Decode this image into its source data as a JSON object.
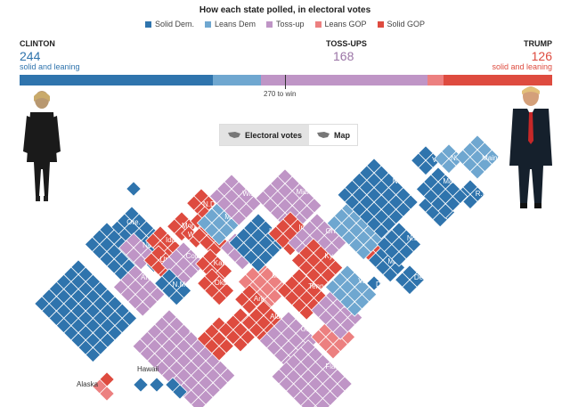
{
  "header": {
    "title": "How each state polled, in electoral votes"
  },
  "legend": [
    {
      "label": "Solid Dem.",
      "color": "#2f74ad"
    },
    {
      "label": "Leans Dem",
      "color": "#6fa7d0"
    },
    {
      "label": "Toss-up",
      "color": "#bf95c6"
    },
    {
      "label": "Leans GOP",
      "color": "#ec8080"
    },
    {
      "label": "Solid GOP",
      "color": "#de4b3f"
    }
  ],
  "summary": {
    "clinton": {
      "name": "CLINTON",
      "votes": "244",
      "sub": "solid and leaning"
    },
    "tossups": {
      "name": "TOSS-UPS",
      "votes": "168"
    },
    "trump": {
      "name": "TRUMP",
      "votes": "126",
      "sub": "solid and leaning"
    },
    "win_label": "270 to win",
    "bar": [
      {
        "key": "solid_dem",
        "votes": 195,
        "color": "#2f74ad"
      },
      {
        "key": "leans_dem",
        "votes": 49,
        "color": "#6fa7d0"
      },
      {
        "key": "tossup",
        "votes": 168,
        "color": "#bf95c6"
      },
      {
        "key": "leans_gop",
        "votes": 16,
        "color": "#ec8080"
      },
      {
        "key": "solid_gop",
        "votes": 110,
        "color": "#de4b3f"
      }
    ]
  },
  "toggle": {
    "electoral": "Electoral votes",
    "map": "Map"
  },
  "colors": {
    "solid_dem": "#2f74ad",
    "leans_dem": "#6fa7d0",
    "tossup": "#bf95c6",
    "leans_gop": "#ec8080",
    "solid_gop": "#de4b3f"
  },
  "states": [
    {
      "abbr": "Wash.",
      "status": "solid_dem"
    },
    {
      "abbr": "Ore.",
      "status": "solid_dem"
    },
    {
      "abbr": "Calif.",
      "status": "solid_dem"
    },
    {
      "abbr": "Nev.",
      "status": "tossup"
    },
    {
      "abbr": "Idaho",
      "status": "solid_gop"
    },
    {
      "abbr": "Mont.",
      "status": "solid_gop"
    },
    {
      "abbr": "Wyo.",
      "status": "solid_gop"
    },
    {
      "abbr": "Utah",
      "status": "solid_gop"
    },
    {
      "abbr": "Colo.",
      "status": "tossup"
    },
    {
      "abbr": "Ariz.",
      "status": "tossup"
    },
    {
      "abbr": "N.M.",
      "status": "solid_dem"
    },
    {
      "abbr": "N.D.",
      "status": "solid_gop"
    },
    {
      "abbr": "S.D.",
      "status": "solid_gop"
    },
    {
      "abbr": "Neb.",
      "status": "solid_gop"
    },
    {
      "abbr": "Kan.",
      "status": "solid_gop"
    },
    {
      "abbr": "Okla.",
      "status": "solid_gop"
    },
    {
      "abbr": "Tex.",
      "status": "tossup"
    },
    {
      "abbr": "Minn.",
      "status": "leans_dem"
    },
    {
      "abbr": "Iowa",
      "status": "tossup"
    },
    {
      "abbr": "Mo.",
      "status": "leans_gop"
    },
    {
      "abbr": "Ark.",
      "status": "solid_gop"
    },
    {
      "abbr": "La.",
      "status": "solid_gop"
    },
    {
      "abbr": "Wis.",
      "status": "tossup"
    },
    {
      "abbr": "Ill.",
      "status": "solid_dem"
    },
    {
      "abbr": "Miss.",
      "status": "solid_gop"
    },
    {
      "abbr": "Mich.",
      "status": "tossup"
    },
    {
      "abbr": "Ind.",
      "status": "solid_gop"
    },
    {
      "abbr": "Ohio",
      "status": "tossup"
    },
    {
      "abbr": "Ky.",
      "status": "solid_gop"
    },
    {
      "abbr": "Tenn.",
      "status": "solid_gop"
    },
    {
      "abbr": "Ala.",
      "status": "solid_gop"
    },
    {
      "abbr": "Ga.",
      "status": "tossup"
    },
    {
      "abbr": "Fla.",
      "status": "tossup"
    },
    {
      "abbr": "S.C.",
      "status": "leans_gop"
    },
    {
      "abbr": "N.C.",
      "status": "tossup"
    },
    {
      "abbr": "Va.",
      "status": "leans_dem"
    },
    {
      "abbr": "W.Va.",
      "status": "solid_gop"
    },
    {
      "abbr": "Pa.",
      "status": "leans_dem"
    },
    {
      "abbr": "N.Y.",
      "status": "solid_dem"
    },
    {
      "abbr": "Md.",
      "status": "solid_dem"
    },
    {
      "abbr": "Del.",
      "status": "solid_dem"
    },
    {
      "abbr": "D.C.",
      "status": "solid_dem"
    },
    {
      "abbr": "N.J.",
      "status": "solid_dem"
    },
    {
      "abbr": "Conn.",
      "status": "solid_dem"
    },
    {
      "abbr": "R.I.",
      "status": "solid_dem"
    },
    {
      "abbr": "Mass.",
      "status": "solid_dem"
    },
    {
      "abbr": "Vt.",
      "status": "solid_dem"
    },
    {
      "abbr": "N.H.",
      "status": "leans_dem"
    },
    {
      "abbr": "Maine",
      "status": "leans_dem"
    }
  ],
  "extras": {
    "alaska": "Alaska",
    "hawaii": "Hawaii"
  }
}
